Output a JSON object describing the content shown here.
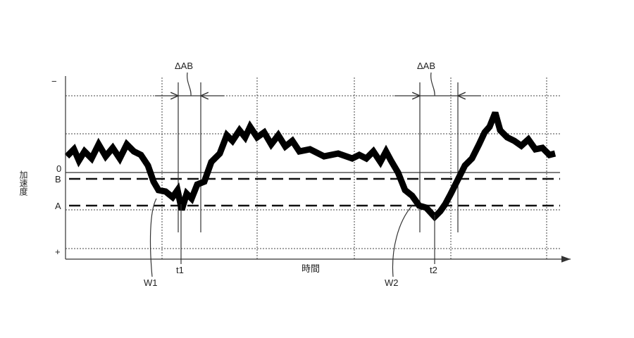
{
  "y_axis": {
    "label": "加速度",
    "minus": "−",
    "zero": "0",
    "b": "B",
    "a": "A",
    "plus": "+"
  },
  "x_axis": {
    "label": "時間"
  },
  "annotations": {
    "delta_ab_1": "ΔAB",
    "delta_ab_2": "ΔAB",
    "w1": "W1",
    "w2": "W2",
    "t1": "t1",
    "t2": "t2"
  },
  "colors": {
    "ink": "#111111",
    "background": "#ffffff"
  }
}
